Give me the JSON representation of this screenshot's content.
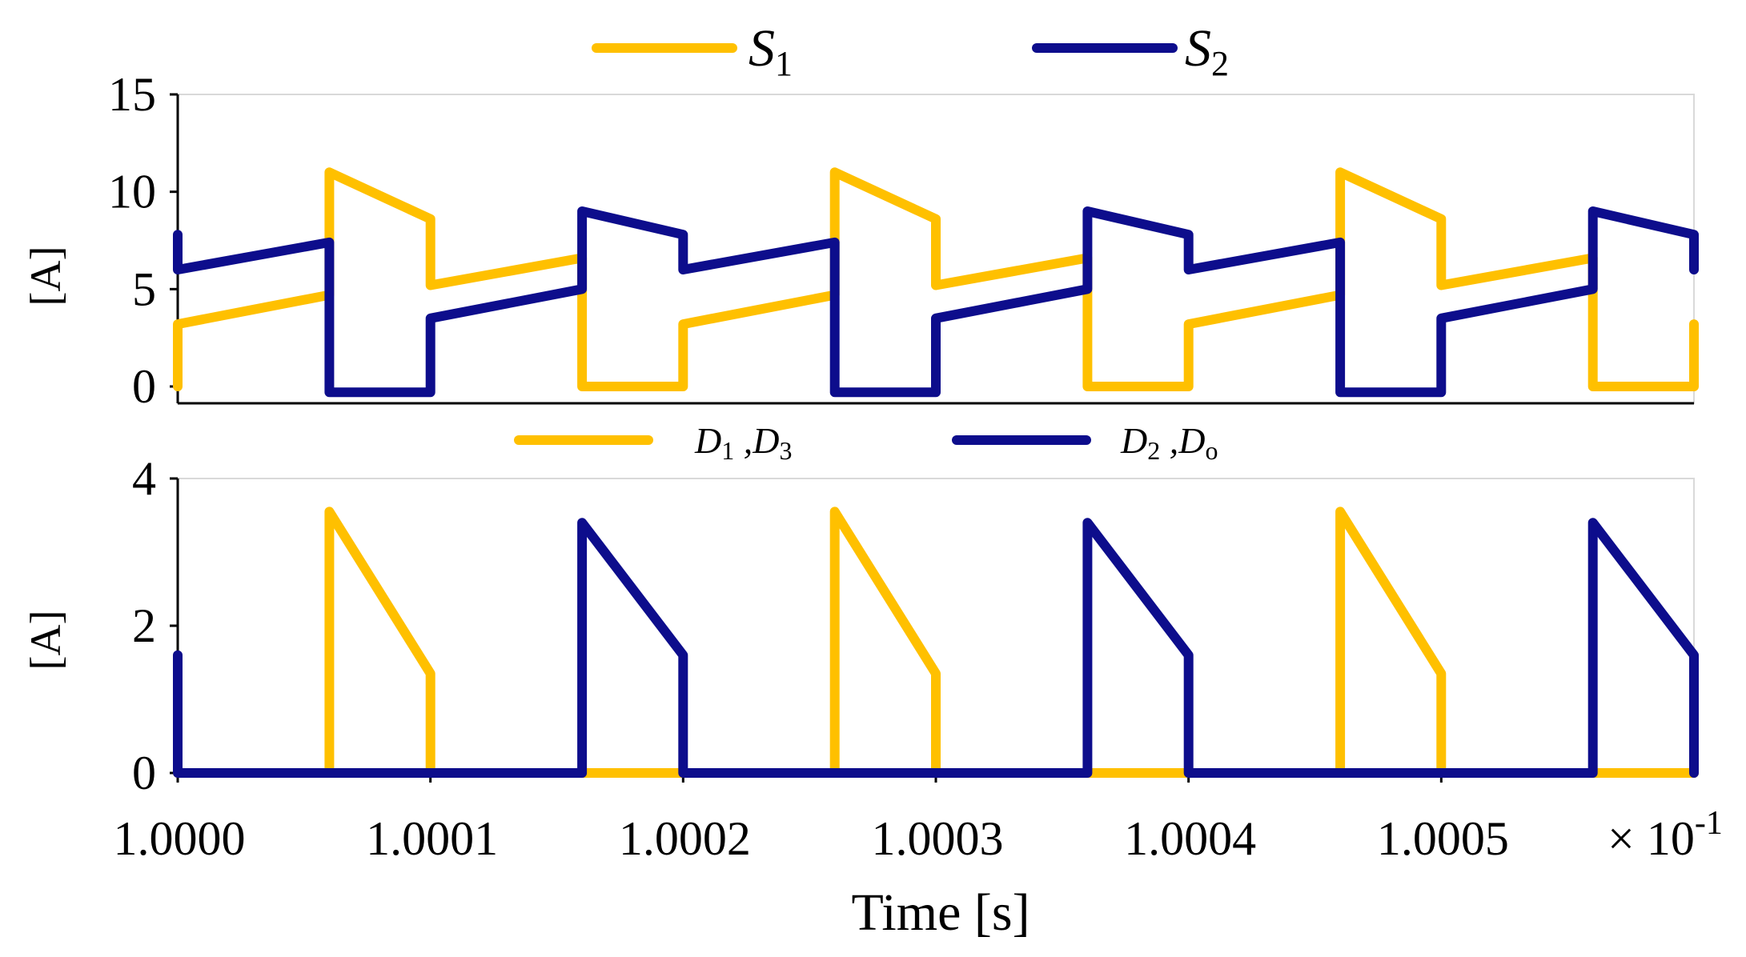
{
  "chart_data": [
    {
      "type": "line",
      "id": "top",
      "ylabel": "[A]",
      "ylim": [
        0,
        15
      ],
      "yticks": [
        0,
        5,
        10,
        15
      ],
      "xlim": [
        1.0,
        1.0006
      ],
      "legend_position": "top",
      "series": [
        {
          "name": "S1",
          "legend_main": "S",
          "legend_sub": "1",
          "color": "#FFC000",
          "points": [
            [
              1.0,
              0
            ],
            [
              1.0,
              3.2
            ],
            [
              1.00006,
              4.7
            ],
            [
              1.00006,
              11
            ],
            [
              1.0001,
              8.6
            ],
            [
              1.0001,
              5.2
            ],
            [
              1.00016,
              6.6
            ],
            [
              1.00016,
              0
            ],
            [
              1.0002,
              0
            ],
            [
              1.0002,
              3.2
            ],
            [
              1.00026,
              4.7
            ],
            [
              1.00026,
              11
            ],
            [
              1.0003,
              8.6
            ],
            [
              1.0003,
              5.2
            ],
            [
              1.00036,
              6.6
            ],
            [
              1.00036,
              0
            ],
            [
              1.0004,
              0
            ],
            [
              1.0004,
              3.2
            ],
            [
              1.00046,
              4.7
            ],
            [
              1.00046,
              11
            ],
            [
              1.0005,
              8.6
            ],
            [
              1.0005,
              5.2
            ],
            [
              1.00056,
              6.6
            ],
            [
              1.00056,
              0
            ],
            [
              1.0006,
              0
            ],
            [
              1.0006,
              3.2
            ]
          ]
        },
        {
          "name": "S2",
          "legend_main": "S",
          "legend_sub": "2",
          "color": "#0D0D8C",
          "points": [
            [
              1.0,
              7.8
            ],
            [
              1.0,
              6.0
            ],
            [
              1.00006,
              7.4
            ],
            [
              1.00006,
              -0.3
            ],
            [
              1.0001,
              -0.3
            ],
            [
              1.0001,
              3.5
            ],
            [
              1.00016,
              5.0
            ],
            [
              1.00016,
              9.0
            ],
            [
              1.0002,
              7.8
            ],
            [
              1.0002,
              6.0
            ],
            [
              1.00026,
              7.4
            ],
            [
              1.00026,
              -0.3
            ],
            [
              1.0003,
              -0.3
            ],
            [
              1.0003,
              3.5
            ],
            [
              1.00036,
              5.0
            ],
            [
              1.00036,
              9.0
            ],
            [
              1.0004,
              7.8
            ],
            [
              1.0004,
              6.0
            ],
            [
              1.00046,
              7.4
            ],
            [
              1.00046,
              -0.3
            ],
            [
              1.0005,
              -0.3
            ],
            [
              1.0005,
              3.5
            ],
            [
              1.00056,
              5.0
            ],
            [
              1.00056,
              9.0
            ],
            [
              1.0006,
              7.8
            ],
            [
              1.0006,
              6.0
            ]
          ]
        }
      ]
    },
    {
      "type": "line",
      "id": "bottom",
      "ylabel": "[A]",
      "xlabel": "Time [s]",
      "ylim": [
        0,
        4
      ],
      "yticks": [
        0,
        2,
        4
      ],
      "xlim": [
        1.0,
        1.0006
      ],
      "xticks": [
        1.0,
        1.0001,
        1.0002,
        1.0003,
        1.0004,
        1.0005
      ],
      "xtick_labels": [
        "1.0000",
        "1.0001",
        "1.0002",
        "1.0003",
        "1.0004",
        "1.0005"
      ],
      "x_scale_note": "× 10",
      "x_scale_exp": "-1",
      "legend_position": "top",
      "series": [
        {
          "name": "D1 ,D3",
          "legend_a": "D",
          "legend_a_sub": "1",
          "legend_sep": " ,",
          "legend_b": "D",
          "legend_b_sub": "3",
          "color": "#FFC000",
          "points": [
            [
              1.0,
              0
            ],
            [
              1.00006,
              0
            ],
            [
              1.00006,
              3.55
            ],
            [
              1.0001,
              1.35
            ],
            [
              1.0001,
              0
            ],
            [
              1.00026,
              0
            ],
            [
              1.00026,
              3.55
            ],
            [
              1.0003,
              1.35
            ],
            [
              1.0003,
              0
            ],
            [
              1.00046,
              0
            ],
            [
              1.00046,
              3.55
            ],
            [
              1.0005,
              1.35
            ],
            [
              1.0005,
              0
            ],
            [
              1.0006,
              0
            ]
          ]
        },
        {
          "name": "D2 ,Do",
          "legend_a": "D",
          "legend_a_sub": "2",
          "legend_sep": " ,",
          "legend_b": "D",
          "legend_b_sub": "o",
          "color": "#0D0D8C",
          "points": [
            [
              1.0,
              1.6
            ],
            [
              1.0,
              0
            ],
            [
              1.00016,
              0
            ],
            [
              1.00016,
              3.4
            ],
            [
              1.0002,
              1.6
            ],
            [
              1.0002,
              0
            ],
            [
              1.00036,
              0
            ],
            [
              1.00036,
              3.4
            ],
            [
              1.0004,
              1.6
            ],
            [
              1.0004,
              0
            ],
            [
              1.00056,
              0
            ],
            [
              1.00056,
              3.4
            ],
            [
              1.0006,
              1.6
            ],
            [
              1.0006,
              0
            ]
          ]
        }
      ]
    }
  ]
}
